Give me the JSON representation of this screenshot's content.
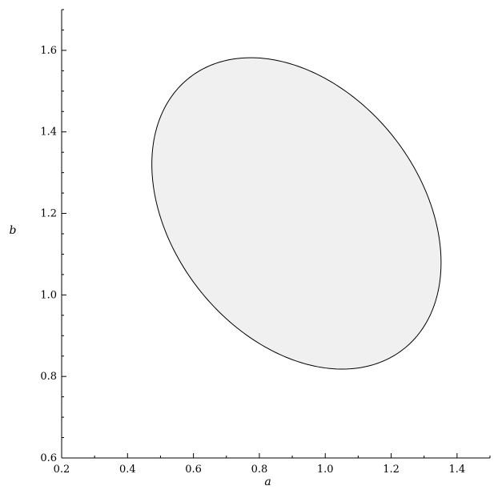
{
  "chart_data": {
    "type": "area",
    "title": "",
    "xlabel": "a",
    "ylabel": "b",
    "xlim": [
      0.2,
      1.5
    ],
    "ylim": [
      0.6,
      1.7
    ],
    "x_ticks": [
      0.2,
      0.4,
      0.6,
      0.8,
      1.0,
      1.2,
      1.4
    ],
    "x_tick_labels": [
      "0.2",
      "0.4",
      "0.6",
      "0.8",
      "1.0",
      "1.2",
      "1.4"
    ],
    "y_ticks": [
      0.6,
      0.8,
      1.0,
      1.2,
      1.4,
      1.6
    ],
    "y_tick_labels": [
      "0.6",
      "0.8",
      "1.0",
      "1.2",
      "1.4",
      "1.6"
    ],
    "grid": false,
    "legend": "none",
    "colors": {
      "region_fill": "#f0f0f0",
      "region_stroke": "#000000",
      "axis": "#000000"
    },
    "region": {
      "shape": "ellipse",
      "center": [
        0.9126,
        1.2
      ],
      "semi_axes": [
        0.4766,
        0.3337
      ],
      "rotation_deg": -33.1,
      "extents": {
        "x_min": 0.45,
        "x_max": 1.37,
        "y_min": 0.81,
        "y_max": 1.59
      }
    }
  }
}
